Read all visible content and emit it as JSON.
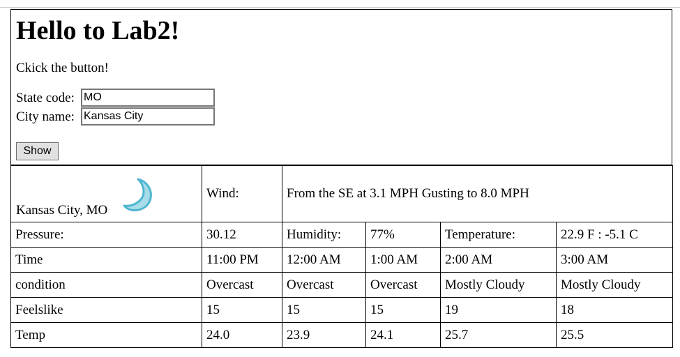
{
  "page": {
    "title": "Hello to Lab2!",
    "instruction": "Ckick the button!"
  },
  "form": {
    "state_label": "State code:",
    "state_value": "MO",
    "city_label": "City name:",
    "city_value": "Kansas City",
    "show_button": "Show"
  },
  "weather": {
    "location": "Kansas City, MO",
    "icon": "crescent-moon-icon",
    "icon_color": "#a8dce8",
    "wind_label": "Wind:",
    "wind_value": "From the SE at 3.1 MPH Gusting to 8.0 MPH",
    "pressure_label": "Pressure:",
    "pressure_value": "30.12",
    "humidity_label": "Humidity:",
    "humidity_value": "77%",
    "temperature_label": "Temperature:",
    "temperature_value": "22.9 F : -5.1 C",
    "rows": [
      {
        "label": "Time",
        "values": [
          "11:00 PM",
          "12:00 AM",
          "1:00 AM",
          "2:00 AM",
          "3:00 AM"
        ]
      },
      {
        "label": "condition",
        "values": [
          "Overcast",
          "Overcast",
          "Overcast",
          "Mostly Cloudy",
          "Mostly Cloudy"
        ]
      },
      {
        "label": "Feelslike",
        "values": [
          "15",
          "15",
          "15",
          "19",
          "18"
        ]
      },
      {
        "label": "Temp",
        "values": [
          "24.0",
          "23.9",
          "24.1",
          "25.7",
          "25.5"
        ]
      }
    ]
  }
}
